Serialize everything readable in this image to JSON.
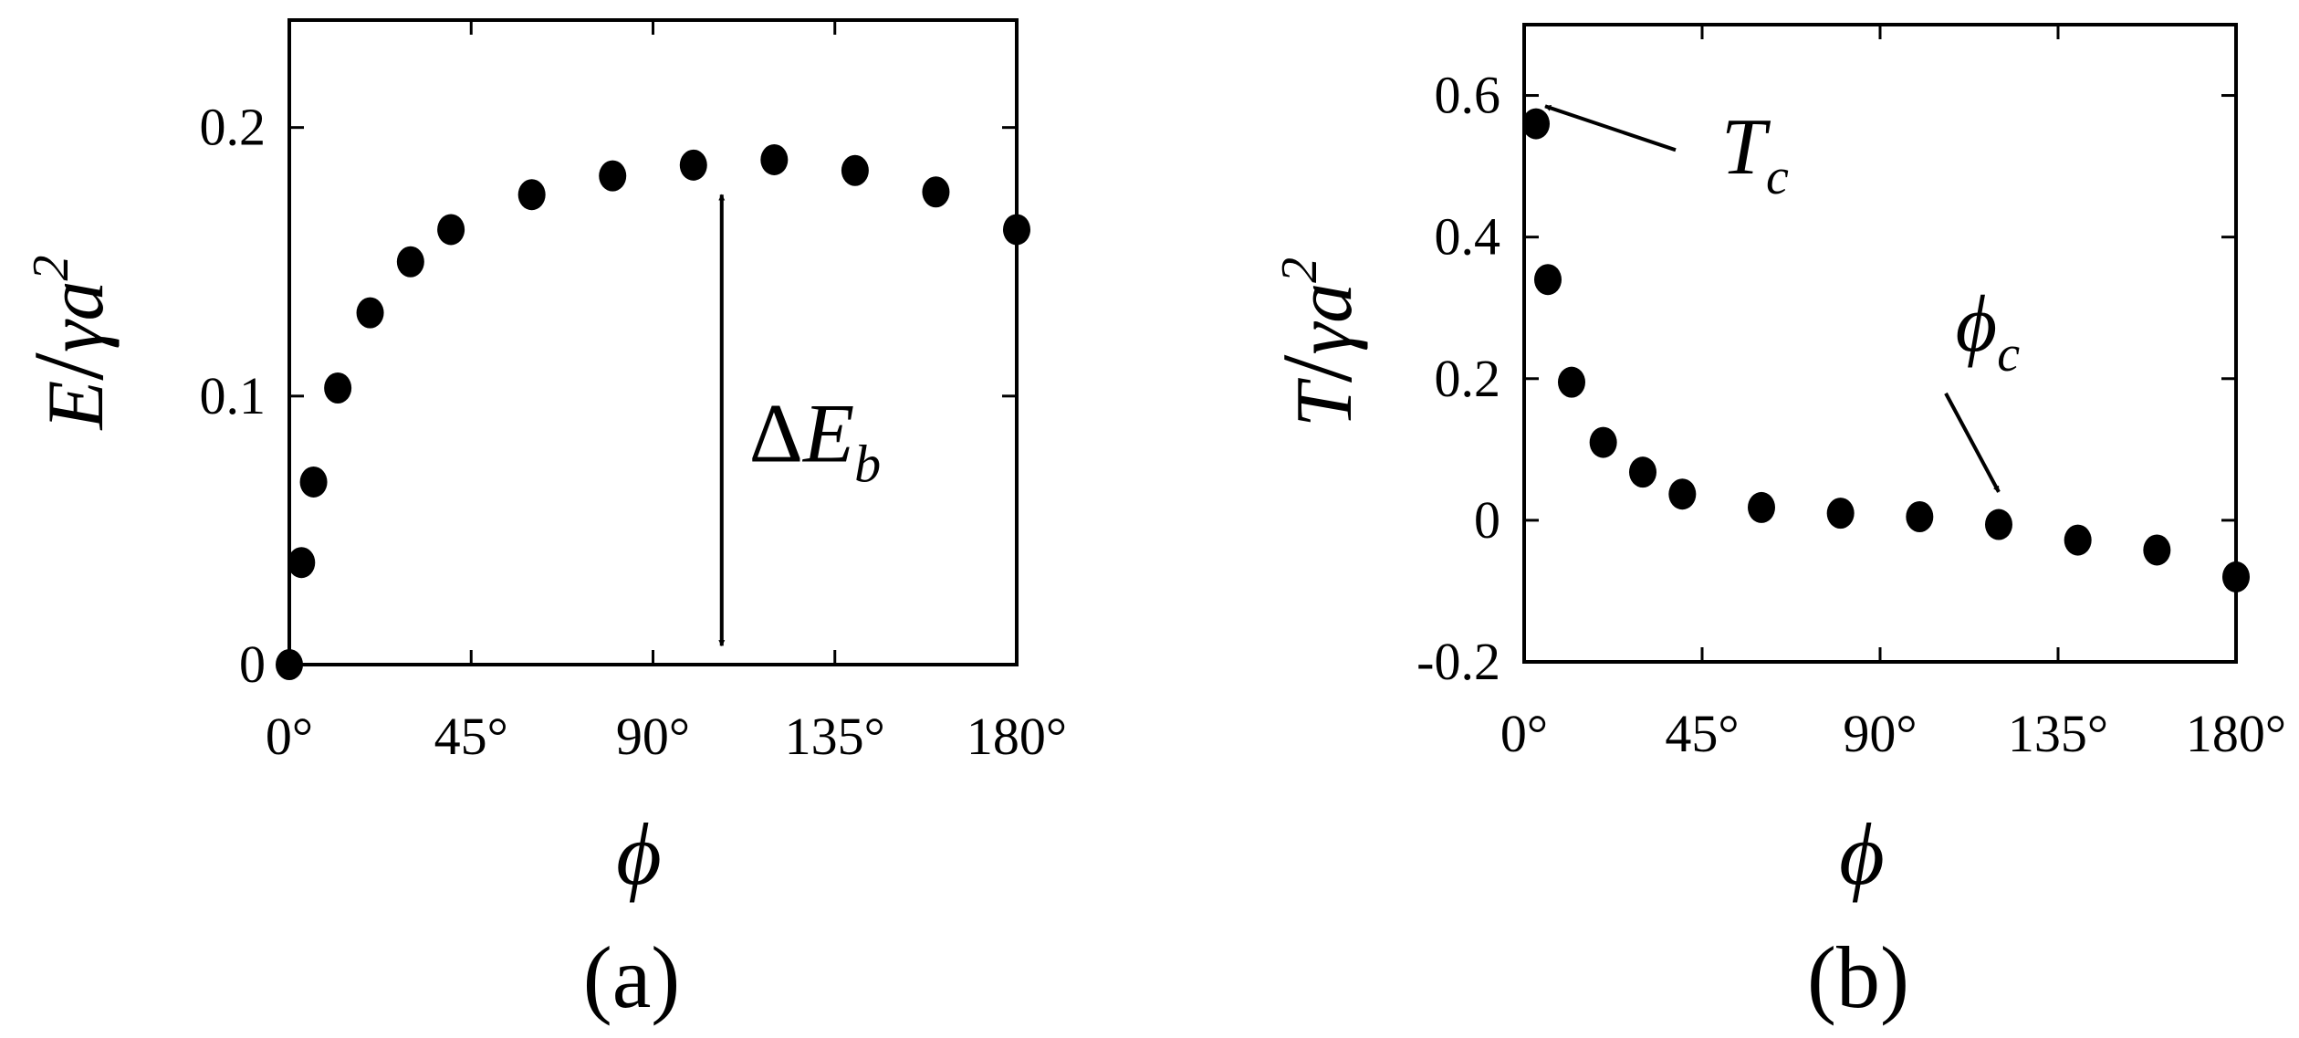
{
  "chart_data": [
    {
      "type": "scatter",
      "panel_label": "(a)",
      "xlabel": "ϕ",
      "ylabel": {
        "parts": [
          "E",
          "/",
          "γa",
          "2"
        ]
      },
      "xlim": [
        0,
        180
      ],
      "ylim": [
        0,
        0.24
      ],
      "x_ticks": [
        0,
        45,
        90,
        135,
        180
      ],
      "x_tick_labels": [
        "0°",
        "45°",
        "90°",
        "135°",
        "180°"
      ],
      "y_ticks": [
        0,
        0.1,
        0.2
      ],
      "y_tick_labels": [
        "0",
        "0.1",
        "0.2"
      ],
      "grid": false,
      "marker_color": "#000000",
      "points": [
        {
          "x": 0,
          "y": 0.0
        },
        {
          "x": 3,
          "y": 0.038
        },
        {
          "x": 6,
          "y": 0.068
        },
        {
          "x": 12,
          "y": 0.103
        },
        {
          "x": 20,
          "y": 0.131
        },
        {
          "x": 30,
          "y": 0.15
        },
        {
          "x": 40,
          "y": 0.162
        },
        {
          "x": 60,
          "y": 0.175
        },
        {
          "x": 80,
          "y": 0.182
        },
        {
          "x": 100,
          "y": 0.186
        },
        {
          "x": 120,
          "y": 0.188
        },
        {
          "x": 140,
          "y": 0.184
        },
        {
          "x": 160,
          "y": 0.176
        },
        {
          "x": 180,
          "y": 0.162
        }
      ],
      "annotations": [
        {
          "kind": "double_arrow",
          "x": 107,
          "y_from": 0.007,
          "y_to": 0.175,
          "label": {
            "parts": [
              "ΔE",
              "b"
            ]
          }
        }
      ]
    },
    {
      "type": "scatter",
      "panel_label": "(b)",
      "xlabel": "ϕ",
      "ylabel": {
        "parts": [
          "T",
          "/",
          "γa",
          "2"
        ]
      },
      "xlim": [
        0,
        180
      ],
      "ylim": [
        -0.2,
        0.7
      ],
      "x_ticks": [
        0,
        45,
        90,
        135,
        180
      ],
      "x_tick_labels": [
        "0°",
        "45°",
        "90°",
        "135°",
        "180°"
      ],
      "y_ticks": [
        -0.2,
        0,
        0.2,
        0.4,
        0.6
      ],
      "y_tick_labels": [
        "-0.2",
        "0",
        "0.2",
        "0.4",
        "0.6"
      ],
      "grid": false,
      "marker_color": "#000000",
      "points": [
        {
          "x": 3,
          "y": 0.56
        },
        {
          "x": 6,
          "y": 0.34
        },
        {
          "x": 12,
          "y": 0.195
        },
        {
          "x": 20,
          "y": 0.11
        },
        {
          "x": 30,
          "y": 0.068
        },
        {
          "x": 40,
          "y": 0.037
        },
        {
          "x": 60,
          "y": 0.018
        },
        {
          "x": 80,
          "y": 0.01
        },
        {
          "x": 100,
          "y": 0.005
        },
        {
          "x": 120,
          "y": -0.006
        },
        {
          "x": 140,
          "y": -0.028
        },
        {
          "x": 160,
          "y": -0.042
        },
        {
          "x": 180,
          "y": -0.08
        }
      ],
      "annotations": [
        {
          "kind": "arrow_label",
          "label": {
            "parts": [
              "T",
              "c"
            ]
          },
          "target": {
            "x": 3,
            "y": 0.59
          },
          "text_at": {
            "x": 48,
            "y": 0.49
          }
        },
        {
          "kind": "arrow_label",
          "label": {
            "parts": [
              "ϕ",
              "c"
            ]
          },
          "target": {
            "x": 120,
            "y": 0.04
          },
          "text_at": {
            "x": 110,
            "y": 0.24
          }
        }
      ]
    }
  ]
}
